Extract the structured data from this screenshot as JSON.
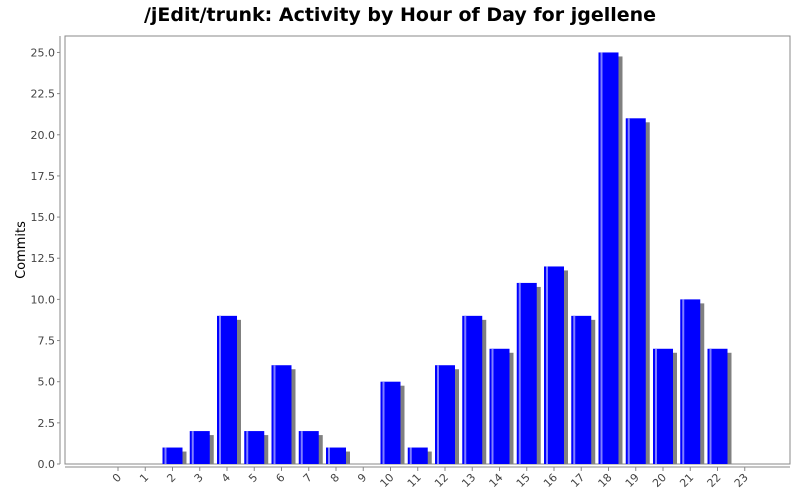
{
  "chart_data": {
    "type": "bar",
    "title": "/jEdit/trunk: Activity by Hour of Day for jgellene",
    "xlabel": "",
    "ylabel": "Commits",
    "categories": [
      "0",
      "1",
      "2",
      "3",
      "4",
      "5",
      "6",
      "7",
      "8",
      "9",
      "10",
      "11",
      "12",
      "13",
      "14",
      "15",
      "16",
      "17",
      "18",
      "19",
      "20",
      "21",
      "22",
      "23"
    ],
    "values": [
      0,
      0,
      1,
      2,
      9,
      2,
      6,
      2,
      1,
      0,
      5,
      1,
      6,
      9,
      7,
      11,
      12,
      9,
      25,
      21,
      7,
      10,
      7,
      0
    ],
    "ylim": [
      0,
      26
    ],
    "yticks": [
      "0.0",
      "2.5",
      "5.0",
      "7.5",
      "10.0",
      "12.5",
      "15.0",
      "17.5",
      "20.0",
      "22.5",
      "25.0"
    ],
    "grid": false,
    "legend": "none",
    "colors": {
      "bar": "#0000ff",
      "shadow": "#808080",
      "bar_highlight": "#8080ff"
    }
  }
}
